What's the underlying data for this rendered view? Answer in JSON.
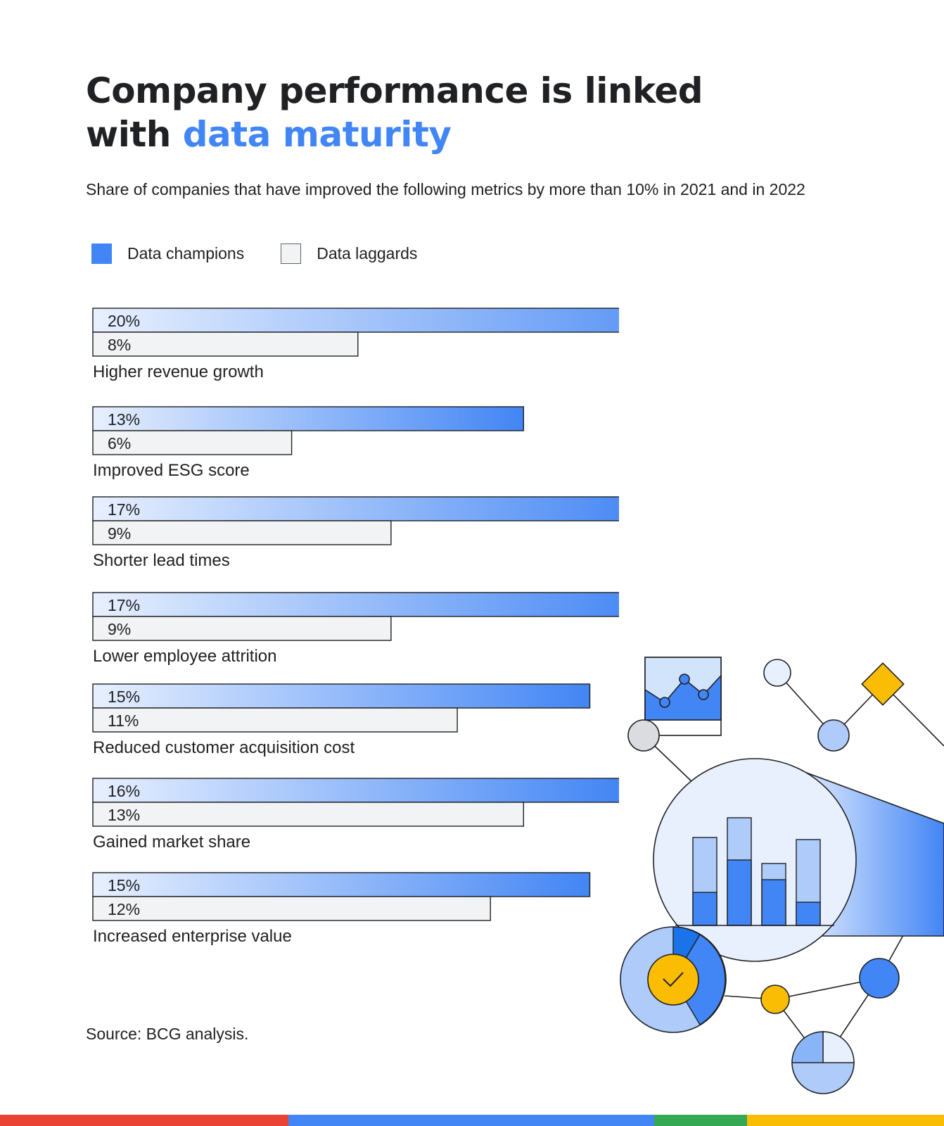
{
  "title": {
    "line1": "Company performance is linked",
    "line2_prefix": "with ",
    "line2_accent": "data maturity"
  },
  "subtitle": "Share of companies that have improved the following metrics by more than 10% in 2021 and in 2022",
  "legend": {
    "champions": "Data champions",
    "laggards": "Data laggards"
  },
  "source": "Source: BCG analysis.",
  "colors": {
    "champion": "#4285f4",
    "champion_light": "#e8f0fe",
    "laggard": "#f1f3f4",
    "outline": "#202124",
    "google_red": "#ea4335",
    "google_blue": "#4285f4",
    "google_green": "#34a853",
    "google_yellow": "#fbbc04"
  },
  "chart_data": {
    "type": "bar",
    "orientation": "horizontal",
    "title": "Company performance is linked with data maturity",
    "subtitle": "Share of companies that have improved the following metrics by more than 10% in 2021 and in 2022",
    "categories": [
      "Higher revenue growth",
      "Improved ESG score",
      "Shorter lead times",
      "Lower employee attrition",
      "Reduced customer acquisition cost",
      "Gained market share",
      "Increased enterprise value"
    ],
    "series": [
      {
        "name": "Data champions",
        "values": [
          20,
          13,
          17,
          17,
          15,
          16,
          15
        ],
        "labels": [
          "20%",
          "13%",
          "17%",
          "17%",
          "15%",
          "16%",
          "15%"
        ]
      },
      {
        "name": "Data laggards",
        "values": [
          8,
          6,
          9,
          9,
          11,
          13,
          12
        ],
        "labels": [
          "8%",
          "6%",
          "9%",
          "9%",
          "11%",
          "13%",
          "12%"
        ]
      }
    ],
    "value_unit": "%",
    "xlim": [
      0,
      20
    ],
    "grid": false,
    "legend_position": "top-left"
  }
}
